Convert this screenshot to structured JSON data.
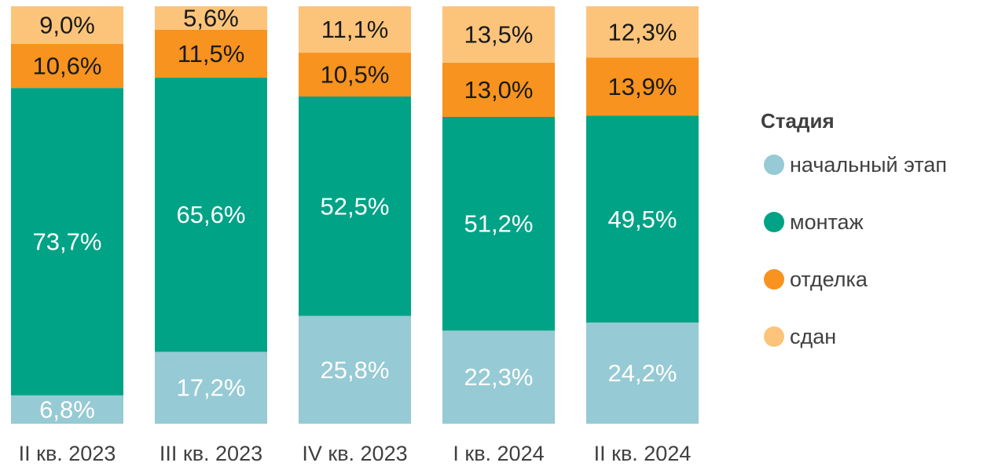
{
  "chart_data": {
    "type": "bar",
    "stacked": true,
    "normalized": true,
    "categories": [
      "II кв. 2023",
      "III кв. 2023",
      "IV кв. 2023",
      "I кв. 2024",
      "II кв. 2024"
    ],
    "series": [
      {
        "name": "начальный этап",
        "values": [
          "6,8%",
          "17,2%",
          "25,8%",
          "22,3%",
          "24,2%"
        ],
        "color": "#96cad4"
      },
      {
        "name": "монтаж",
        "values": [
          "73,7%",
          "65,6%",
          "52,5%",
          "51,2%",
          "49,5%"
        ],
        "color": "#00a386"
      },
      {
        "name": "отделка",
        "values": [
          "10,6%",
          "11,5%",
          "10,5%",
          "13,0%",
          "13,9%"
        ],
        "color": "#f7931e"
      },
      {
        "name": "сдан",
        "values": [
          "9,0%",
          "5,6%",
          "11,1%",
          "13,5%",
          "12,3%"
        ],
        "color": "#fcc47a"
      }
    ],
    "legend": {
      "title": "Стадия",
      "position": "right"
    },
    "ylim": [
      0,
      100
    ],
    "grid": false
  }
}
